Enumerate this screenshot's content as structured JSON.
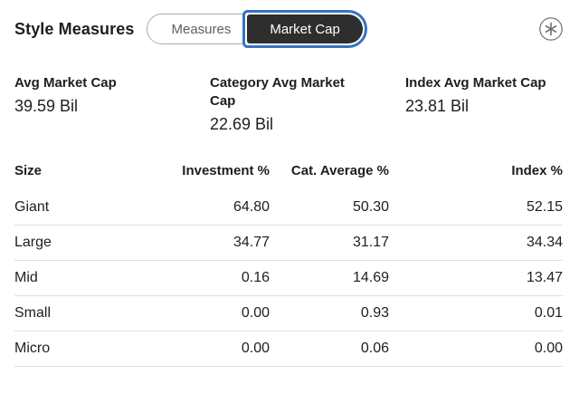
{
  "header": {
    "title": "Style Measures",
    "toggle": {
      "measures_label": "Measures",
      "market_cap_label": "Market Cap",
      "selected": "Market Cap"
    },
    "definitions_icon": "asterisk-in-circle"
  },
  "colors": {
    "accent_blue": "#3573c4",
    "selected_segment_bg": "#2e2e2e",
    "divider": "#e0e0e0",
    "secondary_text": "#5e5e5e",
    "text": "#1e1e1e"
  },
  "stats": [
    {
      "label": "Avg Market Cap",
      "value": "39.59 Bil"
    },
    {
      "label": "Category Avg Market Cap",
      "value": "22.69 Bil"
    },
    {
      "label": "Index Avg Market Cap",
      "value": "23.81 Bil"
    }
  ],
  "table": {
    "columns": [
      "Size",
      "Investment %",
      "Cat. Average %",
      "Index %"
    ],
    "rows": [
      {
        "size": "Giant",
        "investment_pct": "64.80",
        "cat_average_pct": "50.30",
        "index_pct": "52.15"
      },
      {
        "size": "Large",
        "investment_pct": "34.77",
        "cat_average_pct": "31.17",
        "index_pct": "34.34"
      },
      {
        "size": "Mid",
        "investment_pct": "0.16",
        "cat_average_pct": "14.69",
        "index_pct": "13.47"
      },
      {
        "size": "Small",
        "investment_pct": "0.00",
        "cat_average_pct": "0.93",
        "index_pct": "0.01"
      },
      {
        "size": "Micro",
        "investment_pct": "0.00",
        "cat_average_pct": "0.06",
        "index_pct": "0.00"
      }
    ]
  }
}
